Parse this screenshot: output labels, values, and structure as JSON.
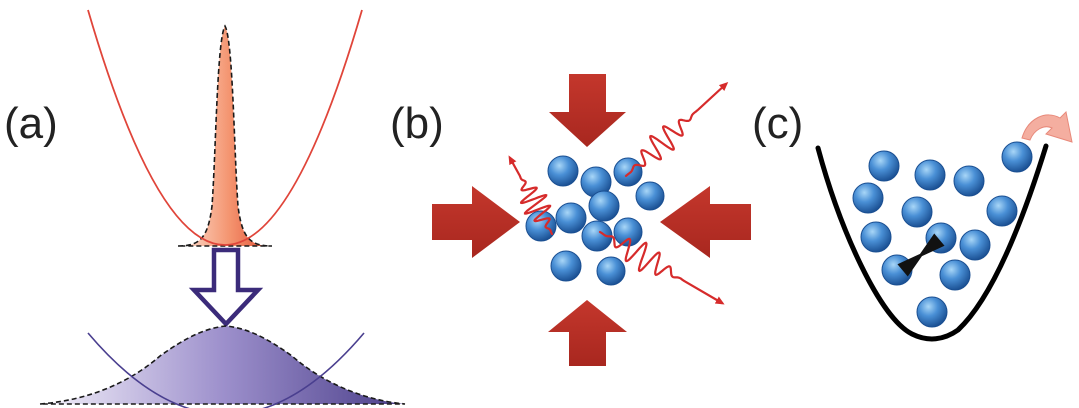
{
  "labels": {
    "a": "(a)",
    "b": "(b)",
    "c": "(c)"
  },
  "colors": {
    "red_curve": "#e0453a",
    "red_fill_light": "#fbd6c8",
    "red_fill_dark": "#e8593d",
    "purple_line": "#5a4fa0",
    "purple_fill_light": "#ece8f6",
    "purple_fill_dark": "#5c4f9a",
    "arrow_outline": "#3b2b7a",
    "push_arrow": "#bf3228",
    "photon_wave": "#d62b2b",
    "atom_light": "#8ec8f2",
    "atom_dark": "#1f5fa8",
    "trap_line": "#000000",
    "escape_arrow": "#f3a79a"
  },
  "icons": {
    "trap_collision": "bowtie-collision-icon",
    "escape": "curved-arrow-icon",
    "compression": "block-arrow-icon",
    "photon": "wavy-arrow-icon"
  }
}
